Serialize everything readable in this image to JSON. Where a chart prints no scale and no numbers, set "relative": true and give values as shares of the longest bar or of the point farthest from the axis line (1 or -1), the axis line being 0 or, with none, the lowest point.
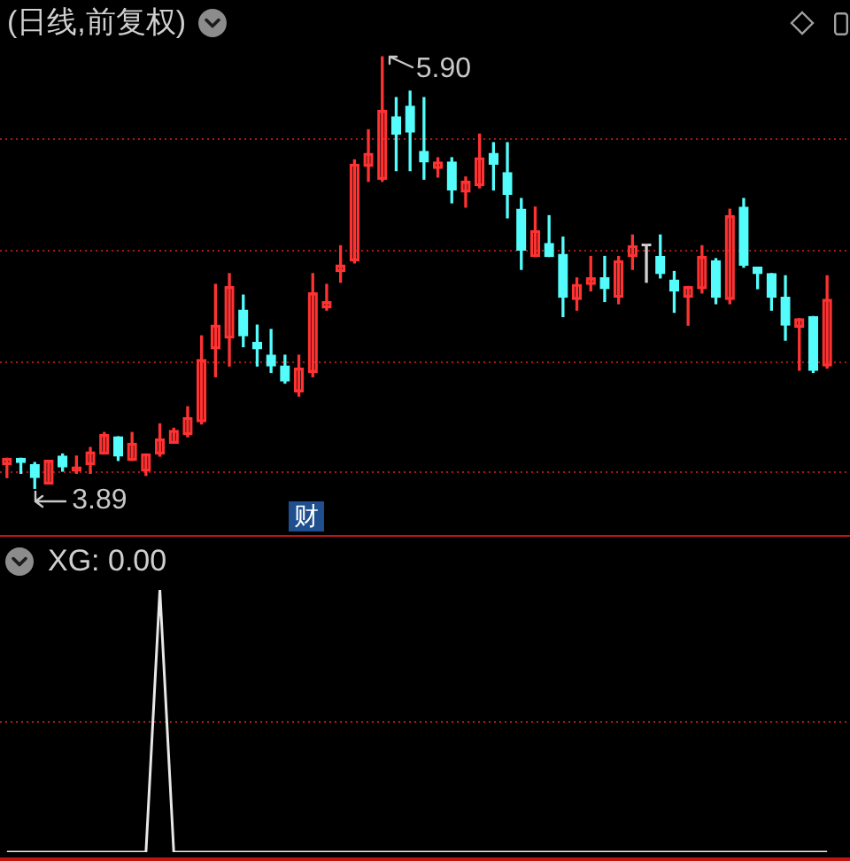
{
  "chart_data": [
    {
      "type": "candlestick",
      "title": "(日线,前复权)",
      "categories": [
        null,
        null,
        null,
        null,
        null,
        null,
        null,
        null,
        null,
        null,
        null,
        null,
        null,
        null,
        null,
        null,
        null,
        null,
        null,
        null,
        null,
        null,
        null,
        null,
        null,
        null,
        null,
        null,
        null,
        null,
        null,
        null,
        null,
        null,
        null,
        null,
        null,
        null,
        null,
        null,
        null,
        null,
        null,
        null,
        null,
        null,
        null,
        null,
        null,
        null,
        null,
        null,
        null,
        null,
        null,
        null,
        null,
        null,
        null,
        null
      ],
      "ohlc": [
        [
          4.0,
          4.03,
          3.94,
          4.03
        ],
        [
          4.03,
          4.03,
          3.96,
          4.01
        ],
        [
          4.0,
          4.01,
          3.89,
          3.94
        ],
        [
          3.91,
          4.02,
          3.91,
          4.02
        ],
        [
          4.04,
          4.05,
          3.97,
          3.99
        ],
        [
          3.97,
          4.04,
          3.96,
          3.99
        ],
        [
          4.0,
          4.08,
          3.96,
          4.06
        ],
        [
          4.05,
          4.15,
          4.05,
          4.14
        ],
        [
          4.13,
          4.13,
          4.02,
          4.04
        ],
        [
          4.02,
          4.15,
          4.02,
          4.1
        ],
        [
          3.97,
          4.05,
          3.95,
          4.05
        ],
        [
          4.05,
          4.19,
          4.04,
          4.12
        ],
        [
          4.1,
          4.17,
          4.1,
          4.16
        ],
        [
          4.14,
          4.27,
          4.13,
          4.22
        ],
        [
          4.2,
          4.6,
          4.19,
          4.49
        ],
        [
          4.54,
          4.84,
          4.41,
          4.65
        ],
        [
          4.59,
          4.89,
          4.46,
          4.83
        ],
        [
          4.72,
          4.79,
          4.55,
          4.6
        ],
        [
          4.57,
          4.65,
          4.46,
          4.54
        ],
        [
          4.51,
          4.63,
          4.43,
          4.46
        ],
        [
          4.46,
          4.51,
          4.38,
          4.39
        ],
        [
          4.34,
          4.51,
          4.32,
          4.45
        ],
        [
          4.43,
          4.89,
          4.41,
          4.8
        ],
        [
          4.73,
          4.84,
          4.72,
          4.76
        ],
        [
          4.9,
          5.02,
          4.85,
          4.93
        ],
        [
          4.95,
          5.42,
          4.94,
          5.4
        ],
        [
          5.39,
          5.56,
          5.32,
          5.45
        ],
        [
          5.33,
          5.9,
          5.32,
          5.65
        ],
        [
          5.62,
          5.71,
          5.37,
          5.54
        ],
        [
          5.67,
          5.74,
          5.37,
          5.55
        ],
        [
          5.46,
          5.71,
          5.33,
          5.41
        ],
        [
          5.38,
          5.43,
          5.34,
          5.41
        ],
        [
          5.41,
          5.43,
          5.22,
          5.28
        ],
        [
          5.27,
          5.34,
          5.2,
          5.32
        ],
        [
          5.3,
          5.54,
          5.29,
          5.43
        ],
        [
          5.45,
          5.5,
          5.28,
          5.4
        ],
        [
          5.36,
          5.5,
          5.15,
          5.26
        ],
        [
          5.19,
          5.24,
          4.91,
          5.0
        ],
        [
          4.97,
          5.2,
          4.97,
          5.09
        ],
        [
          5.03,
          5.16,
          4.97,
          4.97
        ],
        [
          4.98,
          5.06,
          4.69,
          4.78
        ],
        [
          4.77,
          4.87,
          4.72,
          4.84
        ],
        [
          4.84,
          4.97,
          4.81,
          4.87
        ],
        [
          4.87,
          4.97,
          4.76,
          4.82
        ],
        [
          4.78,
          4.97,
          4.75,
          4.95
        ],
        [
          4.97,
          5.07,
          4.91,
          5.02
        ],
        [
          5.02,
          5.02,
          4.85,
          5.02
        ],
        [
          4.97,
          5.07,
          4.87,
          4.89
        ],
        [
          4.86,
          4.9,
          4.71,
          4.81
        ],
        [
          4.78,
          4.83,
          4.65,
          4.83
        ],
        [
          4.82,
          5.02,
          4.8,
          4.97
        ],
        [
          4.95,
          4.96,
          4.75,
          4.78
        ],
        [
          4.77,
          5.19,
          4.75,
          5.16
        ],
        [
          5.2,
          5.24,
          4.92,
          4.93
        ],
        [
          4.92,
          4.92,
          4.82,
          4.89
        ],
        [
          4.89,
          4.89,
          4.72,
          4.78
        ],
        [
          4.78,
          4.88,
          4.58,
          4.65
        ],
        [
          4.64,
          4.68,
          4.44,
          4.68
        ],
        [
          4.69,
          4.69,
          4.43,
          4.44
        ],
        [
          4.46,
          4.88,
          4.45,
          4.77
        ]
      ],
      "colors": [
        "#ff3232",
        "#54fcfc",
        "#54fcfc",
        "#ff3232",
        "#54fcfc",
        "#ff3232",
        "#ff3232",
        "#ff3232",
        "#54fcfc",
        "#ff3232",
        "#ff3232",
        "#ff3232",
        "#ff3232",
        "#ff3232",
        "#ff3232",
        "#ff3232",
        "#ff3232",
        "#54fcfc",
        "#54fcfc",
        "#54fcfc",
        "#54fcfc",
        "#ff3232",
        "#ff3232",
        "#ff3232",
        "#ff3232",
        "#ff3232",
        "#ff3232",
        "#ff3232",
        "#54fcfc",
        "#54fcfc",
        "#54fcfc",
        "#ff3232",
        "#54fcfc",
        "#ff3232",
        "#ff3232",
        "#54fcfc",
        "#54fcfc",
        "#54fcfc",
        "#ff3232",
        "#54fcfc",
        "#54fcfc",
        "#ff3232",
        "#ff3232",
        "#54fcfc",
        "#ff3232",
        "#ff3232",
        "#d0d0d0",
        "#54fcfc",
        "#54fcfc",
        "#ff3232",
        "#ff3232",
        "#54fcfc",
        "#ff3232",
        "#54fcfc",
        "#54fcfc",
        "#54fcfc",
        "#54fcfc",
        "#ff3232",
        "#54fcfc",
        "#ff3232"
      ],
      "yticks": [
        {
          "value": 5.52,
          "label": null
        },
        {
          "value": 5.0,
          "label": null
        },
        {
          "value": 4.48,
          "label": null
        },
        {
          "value": 3.97,
          "label": null
        }
      ],
      "annotations": [
        "5.90",
        "3.89",
        "财"
      ],
      "grid": "y"
    },
    {
      "type": "line",
      "title": "XG: 0.00",
      "categories": [
        null,
        null,
        null,
        null,
        null,
        null,
        null,
        null,
        null,
        null,
        null,
        null,
        null,
        null,
        null,
        null,
        null,
        null,
        null,
        null,
        null,
        null,
        null,
        null,
        null,
        null,
        null,
        null,
        null,
        null,
        null,
        null,
        null,
        null,
        null,
        null,
        null,
        null,
        null,
        null,
        null,
        null,
        null,
        null,
        null,
        null,
        null,
        null,
        null,
        null,
        null,
        null,
        null,
        null,
        null,
        null,
        null,
        null,
        null,
        null
      ],
      "relative": true,
      "series": [
        {
          "color": "#e8e8e8",
          "values": [
            0,
            0,
            0,
            0,
            0,
            0,
            0,
            0,
            0,
            0,
            0,
            1,
            0,
            0,
            0,
            0,
            0,
            0,
            0,
            0,
            0,
            0,
            0,
            0,
            0,
            0,
            0,
            0,
            0,
            0,
            0,
            0,
            0,
            0,
            0,
            0,
            0,
            0,
            0,
            0,
            0,
            0,
            0,
            0,
            0,
            0,
            0,
            0,
            0,
            0,
            0,
            0,
            0,
            0,
            0,
            0,
            0,
            0,
            0,
            0
          ]
        }
      ],
      "ref_lines": [
        {
          "axis": "y",
          "value": 0.5,
          "color": "#a81818",
          "line_style": "dotted"
        }
      ]
    }
  ]
}
